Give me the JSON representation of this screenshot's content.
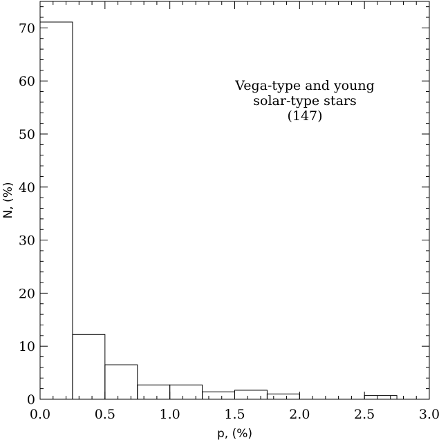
{
  "chart_data": {
    "type": "bar",
    "title": "",
    "xlabel": "p, (%)",
    "ylabel": "N, (%)",
    "xlim": [
      0.0,
      3.0
    ],
    "ylim": [
      0,
      75
    ],
    "x_ticks": [
      "0.0",
      "0.5",
      "1.0",
      "1.5",
      "2.0",
      "2.5",
      "3.0"
    ],
    "y_ticks": [
      "0",
      "10",
      "20",
      "30",
      "40",
      "50",
      "60",
      "70"
    ],
    "bin_width": 0.25,
    "bins": [
      {
        "x0": 0.0,
        "x1": 0.25,
        "value": 71.1
      },
      {
        "x0": 0.25,
        "x1": 0.5,
        "value": 12.2
      },
      {
        "x0": 0.5,
        "x1": 0.75,
        "value": 6.5
      },
      {
        "x0": 0.75,
        "x1": 1.0,
        "value": 2.7
      },
      {
        "x0": 1.0,
        "x1": 1.25,
        "value": 2.7
      },
      {
        "x0": 1.25,
        "x1": 1.5,
        "value": 1.4
      },
      {
        "x0": 1.5,
        "x1": 1.75,
        "value": 1.7
      },
      {
        "x0": 1.75,
        "x1": 2.0,
        "value": 1.0
      },
      {
        "x0": 2.5,
        "x1": 2.75,
        "value": 0.7
      }
    ],
    "annotation": {
      "lines": [
        "Vega-type and young",
        "solar-type stars",
        "(147)"
      ]
    },
    "grid": false,
    "legend": "none"
  }
}
